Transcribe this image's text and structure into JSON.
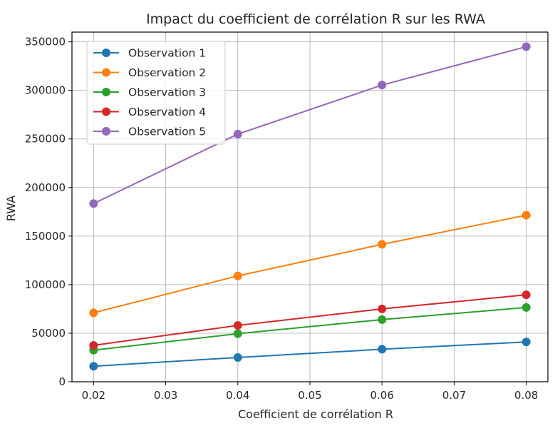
{
  "chart_data": {
    "type": "line",
    "title": "Impact du coefficient de corrélation R sur les RWA",
    "xlabel": "Coefficient de corrélation R",
    "ylabel": "RWA",
    "x": [
      0.02,
      0.04,
      0.06,
      0.08
    ],
    "xlim": [
      0.017,
      0.083
    ],
    "ylim": [
      0,
      360000
    ],
    "xticks": [
      0.02,
      0.03,
      0.04,
      0.05,
      0.06,
      0.07,
      0.08
    ],
    "xtick_labels": [
      "0.02",
      "0.03",
      "0.04",
      "0.05",
      "0.06",
      "0.07",
      "0.08"
    ],
    "yticks": [
      0,
      50000,
      100000,
      150000,
      200000,
      250000,
      300000,
      350000
    ],
    "ytick_labels": [
      "0",
      "50000",
      "100000",
      "150000",
      "200000",
      "250000",
      "300000",
      "350000"
    ],
    "grid": true,
    "legend_position": "top-left",
    "series": [
      {
        "name": "Observation 1",
        "color": "#1f77b4",
        "values": [
          16000,
          25000,
          33500,
          41000
        ]
      },
      {
        "name": "Observation 2",
        "color": "#ff7f0e",
        "values": [
          71000,
          109000,
          141500,
          171500
        ]
      },
      {
        "name": "Observation 3",
        "color": "#2ca02c",
        "values": [
          32500,
          49500,
          64000,
          76500
        ]
      },
      {
        "name": "Observation 4",
        "color": "#d62728",
        "values": [
          37500,
          58000,
          75000,
          89500
        ]
      },
      {
        "name": "Observation 5",
        "color": "#9467bd",
        "values": [
          183500,
          255000,
          305500,
          345000
        ]
      }
    ]
  }
}
